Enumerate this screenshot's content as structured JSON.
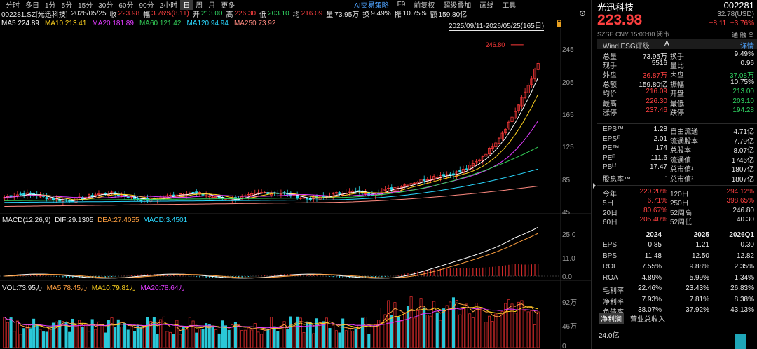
{
  "toolbar": {
    "periods": [
      "分时",
      "多日",
      "1分",
      "5分",
      "15分",
      "30分",
      "60分",
      "90分",
      "2小时",
      "日",
      "周",
      "月",
      "更多"
    ],
    "active_period": "日",
    "right_items": [
      "AI交易策略",
      "F9",
      "前复权",
      "超级叠加",
      "画线",
      "工具"
    ]
  },
  "info": {
    "code": "002281.SZ[光迅科技]",
    "date": "2026/05/25",
    "close_label": "收",
    "close": "223.98",
    "amp_label": "幅",
    "amp": "3.76%(8.11)",
    "open_label": "开",
    "open": "213.00",
    "high_label": "高",
    "high": "226.30",
    "low_label": "低",
    "low": "203.10",
    "avg_label": "均",
    "avg": "216.09",
    "vol_label": "量",
    "vol": "73.95万",
    "turn_label": "换",
    "turn": "9.49%",
    "swing_label": "振",
    "swing": "10.75%",
    "amt_label": "额",
    "amt": "159.80亿"
  },
  "ma": [
    {
      "label": "MA5 224.89",
      "color": "#ffffff"
    },
    {
      "label": "MA10 213.41",
      "color": "#ffd21f"
    },
    {
      "label": "MA20 181.89",
      "color": "#e03cff"
    },
    {
      "label": "MA60 121.42",
      "color": "#34d058"
    },
    {
      "label": "MA120 94.94",
      "color": "#2ad8ff"
    },
    {
      "label": "MA250 73.92",
      "color": "#ff8a80"
    }
  ],
  "range": "2025/09/11-2026/05/25(165日)",
  "price_axis": [
    "245",
    "205",
    "165",
    "125",
    "85",
    "45"
  ],
  "max_label": "246.80",
  "macd": {
    "title": "MACD(12,26,9)",
    "dif": "DIF:29.1305",
    "dea": "DEA:27.4055",
    "macd": "MACD:3.4501",
    "axis": [
      "25.0",
      "11.0",
      "0.0"
    ]
  },
  "vol": {
    "vol": "VOL:73.95万",
    "ma5": "MA5:78.45万",
    "ma10": "MA10:79.81万",
    "ma20": "MA20:78.64万",
    "axis": [
      "92万",
      "46万",
      "0"
    ]
  },
  "quote": {
    "name": "光迅科技",
    "code": "002281",
    "price": "223.98",
    "usd": "32.78(USD)",
    "change": "+8.11",
    "change_pct": "+3.76%",
    "time": "SZSE  CNY  15:00:00  闭市",
    "icons": "通  融  ⊕",
    "esg_label": "Wind ESG评级",
    "esg_value": "A",
    "esg_detail": "详情"
  },
  "stats": [
    {
      "k1": "总量",
      "v1": "73.95万",
      "c1": "white",
      "k2": "换手",
      "v2": "9.49%",
      "c2": "white"
    },
    {
      "k1": "现手",
      "v1": "5516",
      "c1": "white",
      "k2": "量比",
      "v2": "0.96",
      "c2": "white"
    },
    {
      "k1": "外盘",
      "v1": "36.87万",
      "c1": "red",
      "k2": "内盘",
      "v2": "37.08万",
      "c2": "green"
    },
    {
      "k1": "总额",
      "v1": "159.80亿",
      "c1": "white",
      "k2": "振幅",
      "v2": "10.75%",
      "c2": "white"
    },
    {
      "k1": "均价",
      "v1": "216.09",
      "c1": "red",
      "k2": "开盘",
      "v2": "213.00",
      "c2": "green"
    },
    {
      "k1": "最高",
      "v1": "226.30",
      "c1": "red",
      "k2": "最低",
      "v2": "203.10",
      "c2": "green"
    },
    {
      "k1": "涨停",
      "v1": "237.46",
      "c1": "red",
      "k2": "跌停",
      "v2": "194.28",
      "c2": "green"
    }
  ],
  "fundamentals": [
    {
      "k1": "EPS™",
      "v1": "1.28",
      "k2": "自由流通",
      "v2": "4.71亿"
    },
    {
      "k1": "EPSᴱ",
      "v1": "2.01",
      "k2": "流通股本",
      "v2": "7.79亿"
    },
    {
      "k1": "PE™",
      "v1": "174",
      "k2": "总股本",
      "v2": "8.07亿"
    },
    {
      "k1": "PEᴱ",
      "v1": "111.6",
      "k2": "流通值",
      "v2": "1746亿"
    },
    {
      "k1": "PBᴸᶠ",
      "v1": "17.47",
      "k2": "总市值¹",
      "v2": "1807亿"
    },
    {
      "k1": "股息率™",
      "v1": "-",
      "k2": "总市值²",
      "v2": "1807亿"
    }
  ],
  "returns": [
    {
      "k1": "今年",
      "v1": "220.20%",
      "k2": "120日",
      "v2": "294.12%"
    },
    {
      "k1": "5日",
      "v1": "6.71%",
      "k2": "250日",
      "v2": "398.65%"
    },
    {
      "k1": "20日",
      "v1": "80.67%",
      "k2": "52周高",
      "v2": "246.80"
    },
    {
      "k1": "60日",
      "v1": "205.40%",
      "k2": "52周低",
      "v2": "40.30"
    }
  ],
  "fin_header": [
    "2024",
    "2025",
    "2026Q1"
  ],
  "financials": [
    {
      "k": "EPS",
      "v": [
        "0.85",
        "1.21",
        "0.30"
      ]
    },
    {
      "k": "BPS",
      "v": [
        "11.48",
        "12.50",
        "12.82"
      ]
    },
    {
      "k": "ROE",
      "v": [
        "7.55%",
        "9.88%",
        "2.35%"
      ]
    },
    {
      "k": "ROA",
      "v": [
        "4.89%",
        "5.99%",
        "1.34%"
      ]
    },
    {
      "k": "毛利率",
      "v": [
        "22.46%",
        "23.43%",
        "26.83%"
      ]
    },
    {
      "k": "净利率",
      "v": [
        "7.93%",
        "7.81%",
        "8.38%"
      ]
    },
    {
      "k": "负债率",
      "v": [
        "38.07%",
        "37.92%",
        "43.13%"
      ]
    }
  ],
  "tabs": [
    "净利润",
    "营业总收入"
  ],
  "mini_axis": "24.0亿",
  "colors": {
    "up": "#ff4040",
    "down": "#2fd060",
    "vol_up": "#d02a2a",
    "vol_down": "#2ac8d8"
  }
}
